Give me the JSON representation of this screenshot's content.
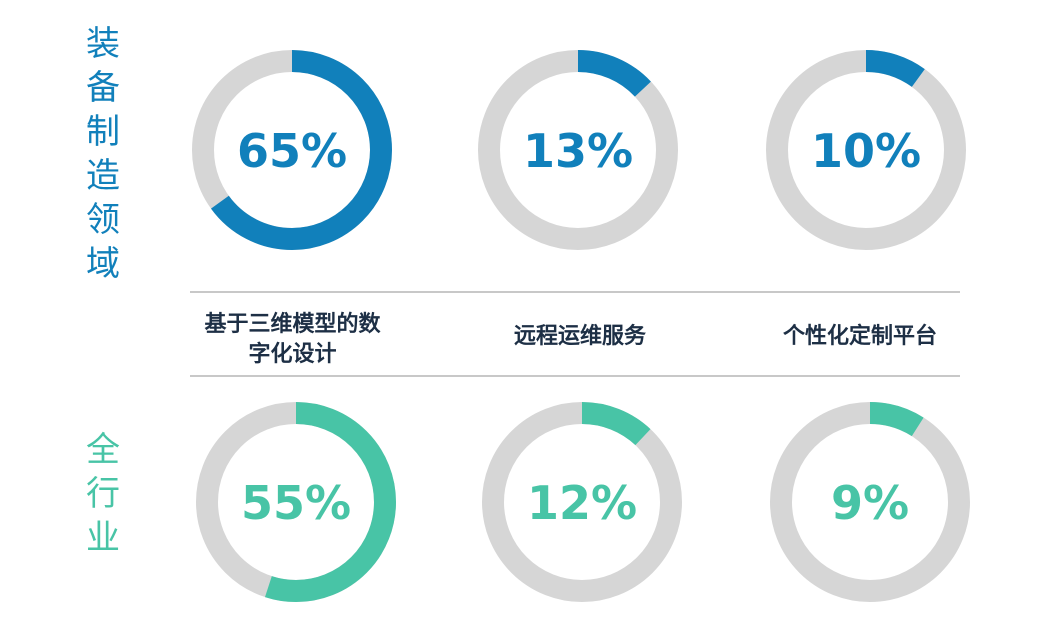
{
  "chart_data": [
    {
      "type": "pie",
      "variant": "donut",
      "group": "装备制造领域",
      "color": "#1180bb",
      "track_color": "#d6d6d6",
      "categories": [
        "基于三维模型的数字化设计",
        "远程运维服务",
        "个性化定制平台"
      ],
      "values": [
        65,
        13,
        10
      ],
      "labels": [
        "65%",
        "13%",
        "10%"
      ]
    },
    {
      "type": "pie",
      "variant": "donut",
      "group": "全行业",
      "color": "#48c4a6",
      "track_color": "#d6d6d6",
      "categories": [
        "基于三维模型的数字化设计",
        "远程运维服务",
        "个性化定制平台"
      ],
      "values": [
        55,
        12,
        9
      ],
      "labels": [
        "55%",
        "12%",
        "9%"
      ]
    }
  ],
  "row_labels": {
    "top": "装备制造领域",
    "bottom": "全行业"
  },
  "category_labels": {
    "cat1_line1": "基于三维模型的数",
    "cat1_line2": "字化设计",
    "cat2": "远程运维服务",
    "cat3": "个性化定制平台"
  }
}
